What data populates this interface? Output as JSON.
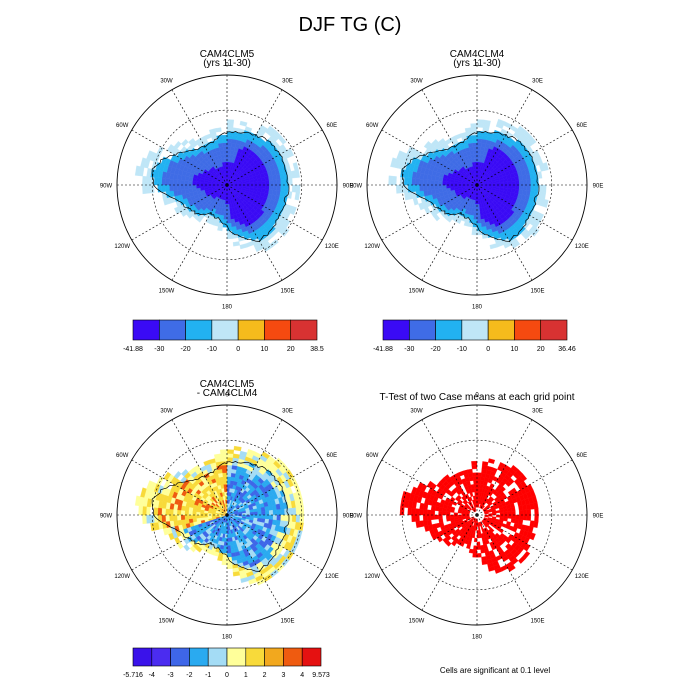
{
  "figure": {
    "title": "DJF TG (C)",
    "footnote": "Cells are significant at 0.1 level"
  },
  "colors": {
    "cold": [
      "#3a0af5",
      "#3f6ce6",
      "#22b2f1",
      "#bfe6f7"
    ],
    "warm": [
      "#f5bb1c",
      "#f54a10",
      "#d83232"
    ],
    "diff": [
      "#3a12ea",
      "#4b2cf0",
      "#3e66e8",
      "#2aaaf0",
      "#a4dcf5",
      "#ffff9a",
      "#f8da3a",
      "#f2a81e",
      "#ef5b10",
      "#e51111",
      "#c52f2f"
    ],
    "ttest": "#ff0000"
  },
  "chart_data": [
    {
      "type": "heatmap",
      "projection": "south-polar-stereographic",
      "title": "CAM4CLM5",
      "subtitle": "(yrs 11-30)",
      "lon_labels": [
        "0",
        "30E",
        "60E",
        "90E",
        "120E",
        "150E",
        "180",
        "150W",
        "120W",
        "90W",
        "60W",
        "30W"
      ],
      "field": {
        "region": "Antarctic ice sheet interior",
        "interior_class": "< -30",
        "ring_classes": [
          "-30 to -20",
          "-20 to -10",
          "-10 to 0"
        ]
      },
      "colorbar": {
        "labels": [
          "-41.88",
          "-30",
          "-20",
          "-10",
          "0",
          "10",
          "20",
          "38.5"
        ]
      }
    },
    {
      "type": "heatmap",
      "projection": "south-polar-stereographic",
      "title": "CAM4CLM4",
      "subtitle": "(yrs 11-30)",
      "lon_labels": [
        "0",
        "30E",
        "60E",
        "90E",
        "120E",
        "150E",
        "180",
        "150W",
        "120W",
        "90W",
        "60W",
        "30W"
      ],
      "field": {
        "region": "Antarctic ice sheet interior",
        "interior_class": "< -30",
        "ring_classes": [
          "-30 to -20",
          "-20 to -10",
          "-10 to 0"
        ]
      },
      "colorbar": {
        "labels": [
          "-41.88",
          "-30",
          "-20",
          "-10",
          "0",
          "10",
          "20",
          "36.46"
        ]
      }
    },
    {
      "type": "heatmap",
      "projection": "south-polar-stereographic",
      "title": "CAM4CLM5",
      "subtitle": "- CAM4CLM4",
      "lon_labels": [
        "0",
        "30E",
        "60E",
        "90E",
        "120E",
        "150E",
        "180",
        "150W",
        "120W",
        "90W",
        "60W",
        "30W"
      ],
      "field": {
        "region": "Antarctica",
        "dominant_class": "-2 to -1",
        "coastal_classes": [
          "0 to 1",
          "1 to 2",
          "2 to 3"
        ]
      },
      "colorbar": {
        "labels": [
          "-5.716",
          "-4",
          "-3",
          "-2",
          "-1",
          "0",
          "1",
          "2",
          "3",
          "4",
          "9.573"
        ]
      }
    },
    {
      "type": "heatmap",
      "projection": "south-polar-stereographic",
      "title": "T-Test of two Case means at each grid point",
      "lon_labels": [
        "0",
        "30E",
        "60E",
        "90E",
        "120E",
        "150E",
        "180",
        "150W",
        "120W",
        "90W",
        "60W",
        "30W"
      ],
      "field": {
        "region": "Antarctica",
        "significant_cells": "most of continent"
      }
    }
  ]
}
